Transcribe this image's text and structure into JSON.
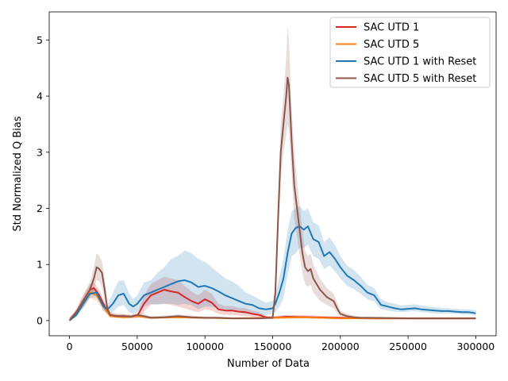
{
  "chart_data": {
    "type": "line",
    "title": "",
    "xlabel": "Number of Data",
    "ylabel": "Std Normalized Q Bias",
    "xlim": [
      -15000,
      315000
    ],
    "ylim": [
      -0.27,
      5.5
    ],
    "xticks": [
      0,
      50000,
      100000,
      150000,
      200000,
      250000,
      300000
    ],
    "yticks": [
      0,
      1,
      2,
      3,
      4,
      5
    ],
    "grid": false,
    "legend_position": "top-right",
    "series": [
      {
        "name": "SAC UTD 1",
        "color": "#d62728",
        "x": [
          0,
          5000,
          10000,
          15000,
          18000,
          22000,
          26000,
          30000,
          35000,
          40000,
          45000,
          50000,
          55000,
          60000,
          65000,
          70000,
          75000,
          80000,
          85000,
          90000,
          95000,
          100000,
          105000,
          110000,
          115000,
          120000,
          125000,
          130000,
          135000,
          140000,
          145000,
          150000,
          160000,
          180000,
          200000,
          220000,
          250000,
          300000
        ],
        "y": [
          0.0,
          0.15,
          0.35,
          0.55,
          0.58,
          0.45,
          0.25,
          0.1,
          0.08,
          0.08,
          0.07,
          0.08,
          0.3,
          0.45,
          0.5,
          0.55,
          0.52,
          0.5,
          0.42,
          0.35,
          0.3,
          0.38,
          0.32,
          0.2,
          0.18,
          0.18,
          0.16,
          0.15,
          0.12,
          0.1,
          0.06,
          0.05,
          0.07,
          0.06,
          0.05,
          0.04,
          0.04,
          0.04
        ],
        "lower": [
          0.0,
          0.1,
          0.25,
          0.45,
          0.5,
          0.38,
          0.18,
          0.07,
          0.05,
          0.05,
          0.05,
          0.05,
          0.15,
          0.28,
          0.3,
          0.3,
          0.28,
          0.25,
          0.22,
          0.18,
          0.15,
          0.2,
          0.18,
          0.12,
          0.1,
          0.1,
          0.09,
          0.08,
          0.07,
          0.06,
          0.04,
          0.03,
          0.04,
          0.04,
          0.03,
          0.03,
          0.03,
          0.03
        ],
        "upper": [
          0.05,
          0.2,
          0.45,
          0.65,
          0.68,
          0.55,
          0.32,
          0.14,
          0.11,
          0.11,
          0.1,
          0.11,
          0.45,
          0.65,
          0.72,
          0.78,
          0.75,
          0.72,
          0.62,
          0.52,
          0.45,
          0.55,
          0.48,
          0.3,
          0.26,
          0.26,
          0.23,
          0.22,
          0.18,
          0.15,
          0.09,
          0.08,
          0.1,
          0.09,
          0.07,
          0.06,
          0.06,
          0.06
        ]
      },
      {
        "name": "SAC UTD 5",
        "color": "#ff7f0e",
        "x": [
          0,
          5000,
          10000,
          15000,
          20000,
          25000,
          30000,
          40000,
          50000,
          60000,
          80000,
          100000,
          120000,
          150000,
          170000,
          200000,
          250000,
          300000
        ],
        "y": [
          0.0,
          0.12,
          0.3,
          0.5,
          0.45,
          0.25,
          0.08,
          0.06,
          0.08,
          0.05,
          0.06,
          0.05,
          0.04,
          0.05,
          0.06,
          0.04,
          0.04,
          0.04
        ],
        "lower": [
          0.0,
          0.08,
          0.22,
          0.4,
          0.35,
          0.18,
          0.05,
          0.04,
          0.05,
          0.03,
          0.04,
          0.03,
          0.03,
          0.03,
          0.04,
          0.03,
          0.03,
          0.03
        ],
        "upper": [
          0.05,
          0.16,
          0.38,
          0.6,
          0.55,
          0.32,
          0.11,
          0.09,
          0.11,
          0.07,
          0.09,
          0.07,
          0.06,
          0.07,
          0.09,
          0.06,
          0.06,
          0.06
        ]
      },
      {
        "name": "SAC UTD 1 with Reset",
        "color": "#1f77b4",
        "x": [
          0,
          5000,
          10000,
          15000,
          20000,
          25000,
          28000,
          32000,
          36000,
          40000,
          44000,
          47000,
          50000,
          55000,
          60000,
          65000,
          70000,
          75000,
          80000,
          85000,
          90000,
          95000,
          100000,
          105000,
          110000,
          115000,
          120000,
          125000,
          130000,
          135000,
          140000,
          145000,
          150000,
          152000,
          155000,
          158000,
          161000,
          164000,
          167000,
          170000,
          173000,
          176000,
          180000,
          184000,
          188000,
          192000,
          196000,
          200000,
          205000,
          210000,
          215000,
          220000,
          225000,
          230000,
          235000,
          240000,
          245000,
          250000,
          255000,
          260000,
          265000,
          270000,
          275000,
          280000,
          285000,
          290000,
          295000,
          300000
        ],
        "y": [
          0.0,
          0.1,
          0.3,
          0.48,
          0.5,
          0.25,
          0.2,
          0.3,
          0.45,
          0.48,
          0.3,
          0.25,
          0.3,
          0.45,
          0.5,
          0.55,
          0.6,
          0.65,
          0.7,
          0.72,
          0.68,
          0.6,
          0.62,
          0.58,
          0.52,
          0.45,
          0.4,
          0.35,
          0.3,
          0.28,
          0.22,
          0.2,
          0.22,
          0.3,
          0.5,
          0.75,
          1.2,
          1.55,
          1.65,
          1.68,
          1.62,
          1.68,
          1.45,
          1.4,
          1.15,
          1.22,
          1.1,
          0.95,
          0.8,
          0.72,
          0.62,
          0.5,
          0.45,
          0.28,
          0.25,
          0.22,
          0.2,
          0.21,
          0.22,
          0.2,
          0.19,
          0.18,
          0.17,
          0.17,
          0.16,
          0.15,
          0.15,
          0.13
        ],
        "lower": [
          0.0,
          0.06,
          0.22,
          0.4,
          0.42,
          0.18,
          0.12,
          0.15,
          0.25,
          0.28,
          0.15,
          0.12,
          0.15,
          0.25,
          0.3,
          0.28,
          0.3,
          0.3,
          0.28,
          0.3,
          0.28,
          0.2,
          0.25,
          0.25,
          0.22,
          0.2,
          0.18,
          0.15,
          0.12,
          0.12,
          0.1,
          0.1,
          0.12,
          0.15,
          0.25,
          0.4,
          0.8,
          1.15,
          1.2,
          1.3,
          1.3,
          1.35,
          1.15,
          1.1,
          0.92,
          0.98,
          0.88,
          0.75,
          0.62,
          0.56,
          0.48,
          0.38,
          0.34,
          0.2,
          0.18,
          0.16,
          0.15,
          0.16,
          0.17,
          0.15,
          0.14,
          0.13,
          0.13,
          0.13,
          0.12,
          0.11,
          0.11,
          0.09
        ],
        "upper": [
          0.05,
          0.14,
          0.38,
          0.56,
          0.58,
          0.32,
          0.28,
          0.5,
          0.7,
          0.72,
          0.48,
          0.38,
          0.45,
          0.68,
          0.72,
          0.85,
          0.95,
          1.1,
          1.15,
          1.25,
          1.2,
          1.1,
          1.05,
          0.95,
          0.85,
          0.75,
          0.7,
          0.62,
          0.5,
          0.45,
          0.38,
          0.32,
          0.35,
          0.48,
          0.78,
          1.1,
          1.6,
          1.95,
          2.0,
          2.05,
          1.95,
          2.0,
          1.75,
          1.7,
          1.4,
          1.48,
          1.35,
          1.15,
          0.98,
          0.9,
          0.78,
          0.64,
          0.58,
          0.38,
          0.33,
          0.3,
          0.27,
          0.28,
          0.29,
          0.27,
          0.25,
          0.24,
          0.23,
          0.22,
          0.21,
          0.2,
          0.2,
          0.18
        ]
      },
      {
        "name": "SAC UTD 5 with Reset",
        "color": "#8c564b",
        "x": [
          0,
          5000,
          10000,
          15000,
          18000,
          20000,
          22000,
          24000,
          26000,
          28000,
          30000,
          35000,
          40000,
          45000,
          50000,
          55000,
          60000,
          70000,
          80000,
          90000,
          100000,
          110000,
          120000,
          130000,
          140000,
          150000,
          152000,
          154000,
          156000,
          158000,
          160000,
          161000,
          162000,
          164000,
          166000,
          168000,
          170000,
          172000,
          174000,
          176000,
          178000,
          180000,
          185000,
          190000,
          195000,
          198000,
          200000,
          205000,
          210000,
          215000,
          220000,
          250000,
          300000
        ],
        "y": [
          0.0,
          0.15,
          0.35,
          0.55,
          0.75,
          0.95,
          0.92,
          0.85,
          0.55,
          0.2,
          0.1,
          0.08,
          0.08,
          0.07,
          0.1,
          0.08,
          0.05,
          0.06,
          0.08,
          0.06,
          0.05,
          0.05,
          0.04,
          0.04,
          0.04,
          0.05,
          0.5,
          1.8,
          3.0,
          3.5,
          4.0,
          4.33,
          4.2,
          3.2,
          2.4,
          2.0,
          1.6,
          1.2,
          0.95,
          0.88,
          0.92,
          0.75,
          0.55,
          0.42,
          0.35,
          0.2,
          0.12,
          0.08,
          0.06,
          0.05,
          0.05,
          0.04,
          0.04
        ],
        "lower": [
          0.0,
          0.1,
          0.25,
          0.42,
          0.55,
          0.72,
          0.7,
          0.6,
          0.35,
          0.12,
          0.06,
          0.05,
          0.05,
          0.04,
          0.06,
          0.05,
          0.03,
          0.04,
          0.05,
          0.04,
          0.03,
          0.03,
          0.03,
          0.03,
          0.03,
          0.03,
          0.3,
          1.4,
          2.5,
          3.0,
          3.3,
          3.5,
          3.4,
          2.6,
          1.8,
          1.5,
          1.15,
          0.85,
          0.65,
          0.6,
          0.64,
          0.5,
          0.35,
          0.28,
          0.22,
          0.12,
          0.08,
          0.05,
          0.04,
          0.03,
          0.03,
          0.03,
          0.03
        ],
        "upper": [
          0.05,
          0.2,
          0.45,
          0.68,
          0.95,
          1.2,
          1.15,
          1.05,
          0.75,
          0.3,
          0.15,
          0.12,
          0.12,
          0.1,
          0.14,
          0.12,
          0.08,
          0.09,
          0.11,
          0.09,
          0.07,
          0.07,
          0.06,
          0.06,
          0.06,
          0.08,
          0.75,
          2.2,
          3.5,
          4.0,
          4.7,
          5.25,
          5.0,
          3.8,
          3.0,
          2.5,
          2.05,
          1.6,
          1.25,
          1.15,
          1.2,
          1.0,
          0.75,
          0.58,
          0.48,
          0.3,
          0.18,
          0.12,
          0.09,
          0.07,
          0.07,
          0.06,
          0.06
        ]
      }
    ]
  }
}
